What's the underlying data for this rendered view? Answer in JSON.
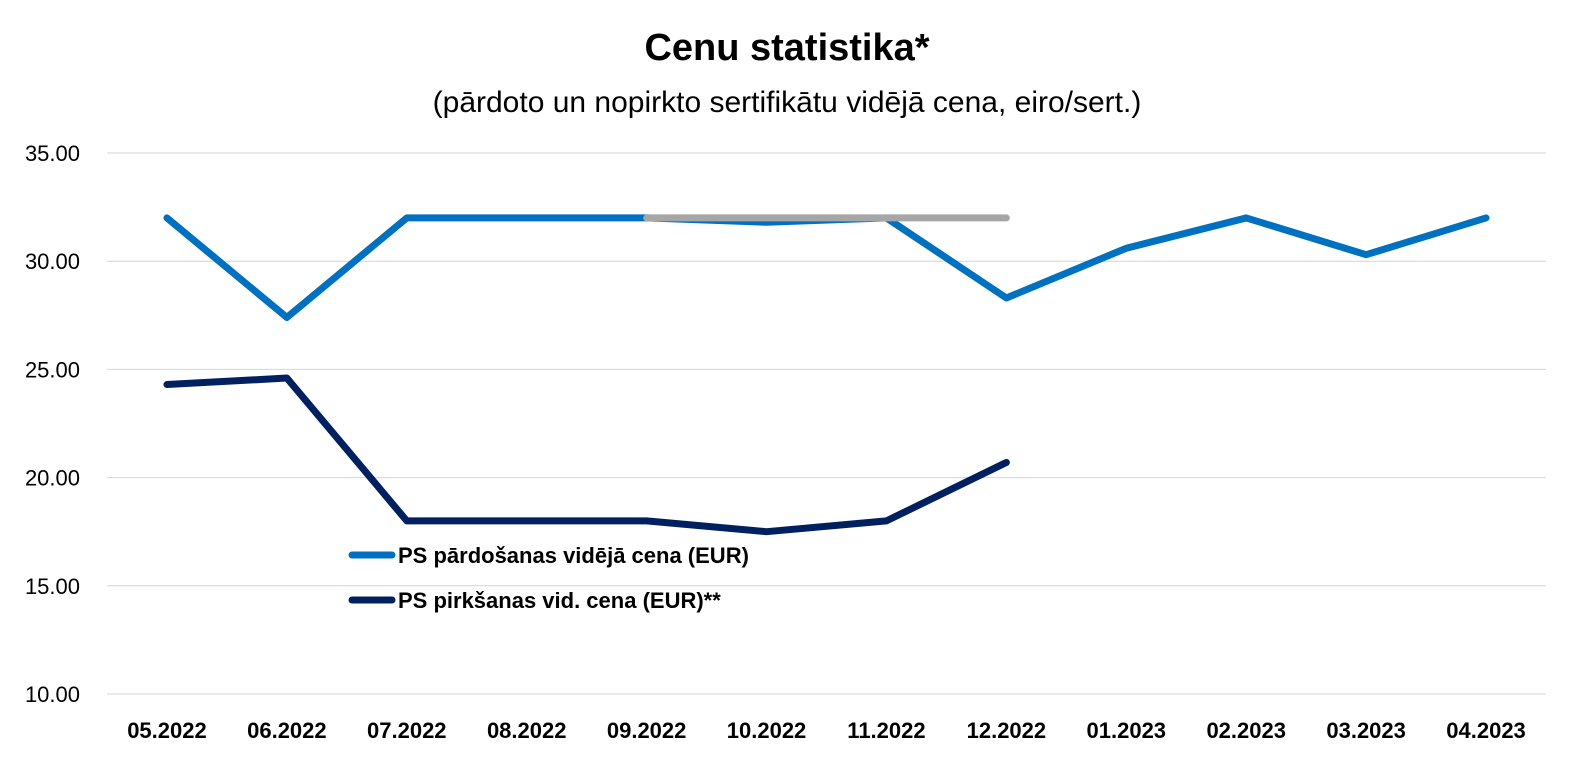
{
  "chart_data": {
    "type": "line",
    "title": "Cenu statistika*",
    "subtitle": "(pārdoto un nopirkto sertifikātu vidējā cena, eiro/sert.)",
    "categories": [
      "05.2022",
      "06.2022",
      "07.2022",
      "08.2022",
      "09.2022",
      "10.2022",
      "11.2022",
      "12.2022",
      "01.2023",
      "02.2023",
      "03.2023",
      "04.2023"
    ],
    "ylim": [
      10,
      35
    ],
    "yticks": [
      "10.00",
      "15.00",
      "20.00",
      "25.00",
      "30.00",
      "35.00"
    ],
    "grid": true,
    "legend_position": "center-left",
    "series": [
      {
        "name": "PS pārdošanas vidējā cena (EUR)",
        "color": "#0070C0",
        "values": [
          32.0,
          27.4,
          32.0,
          32.0,
          32.0,
          31.8,
          32.0,
          28.3,
          30.6,
          32.0,
          30.3,
          32.0
        ],
        "legend": true
      },
      {
        "name": "PS pirkšanas vid. cena (EUR)**",
        "color": "#002060",
        "values": [
          24.3,
          24.6,
          18.0,
          18.0,
          18.0,
          17.5,
          18.0,
          20.7,
          null,
          null,
          null,
          null
        ],
        "legend": true
      },
      {
        "name": "",
        "color": "#A6A6A6",
        "values": [
          null,
          null,
          null,
          null,
          32.0,
          32.0,
          32.0,
          32.0,
          null,
          null,
          null,
          null
        ],
        "legend": false
      }
    ]
  }
}
